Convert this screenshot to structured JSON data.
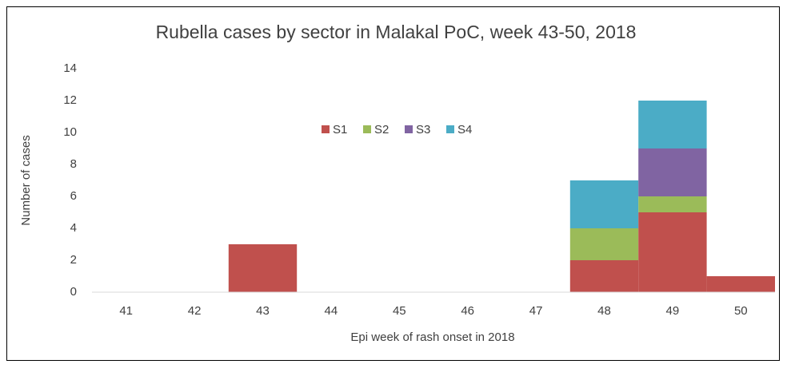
{
  "chart_data": {
    "type": "stacked_bar",
    "title": "Rubella cases by sector in Malakal PoC, week 43-50, 2018",
    "x_label": "Epi week of rash onset in 2018",
    "y_label": "Number of cases",
    "categories": [
      "41",
      "42",
      "43",
      "44",
      "45",
      "46",
      "47",
      "48",
      "49",
      "50"
    ],
    "series": [
      {
        "name": "S1",
        "color": "#c0504d",
        "values": [
          0,
          0,
          3,
          0,
          0,
          0,
          0,
          2,
          5,
          1
        ]
      },
      {
        "name": "S2",
        "color": "#9bbb59",
        "values": [
          0,
          0,
          0,
          0,
          0,
          0,
          0,
          2,
          1,
          0
        ]
      },
      {
        "name": "S3",
        "color": "#8064a2",
        "values": [
          0,
          0,
          0,
          0,
          0,
          0,
          0,
          0,
          3,
          0
        ]
      },
      {
        "name": "S4",
        "color": "#4bacc6",
        "values": [
          0,
          0,
          0,
          0,
          0,
          0,
          0,
          3,
          3,
          0
        ]
      }
    ],
    "ylim": [
      0,
      14
    ],
    "yticks": [
      0,
      2,
      4,
      6,
      8,
      10,
      12,
      14
    ],
    "grid": false,
    "legend": "top"
  }
}
